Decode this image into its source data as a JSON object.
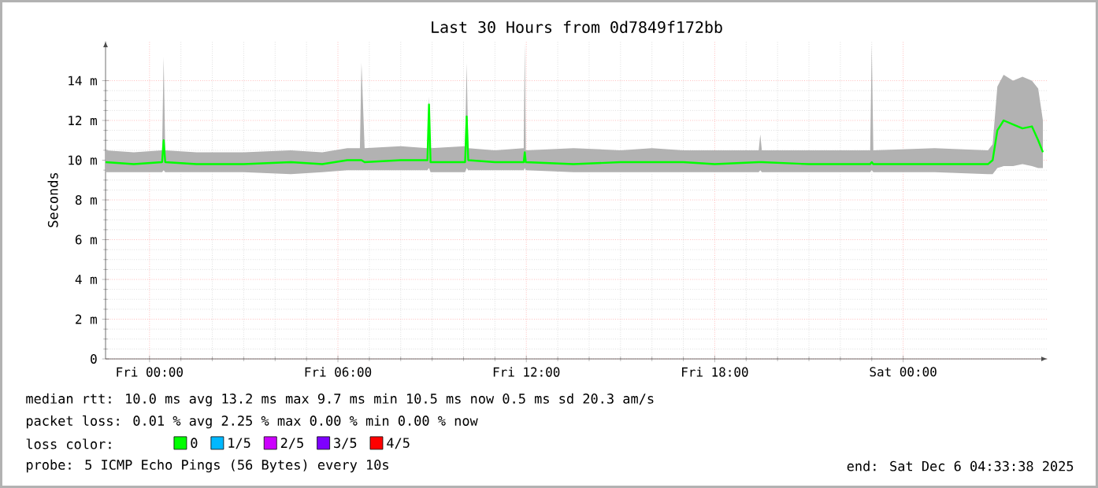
{
  "chart_data": {
    "type": "line",
    "title": "Last 30 Hours from 0d7849f172bb",
    "ylabel": "Seconds",
    "legend_title": "loss color:",
    "xlim": [
      "2025-12-04T22:36",
      "2025-12-06T04:36"
    ],
    "xticks": [
      {
        "value": "2025-12-05T00:00",
        "label": "Fri 00:00"
      },
      {
        "value": "2025-12-05T06:00",
        "label": "Fri 06:00"
      },
      {
        "value": "2025-12-05T12:00",
        "label": "Fri 12:00"
      },
      {
        "value": "2025-12-05T18:00",
        "label": "Fri 18:00"
      },
      {
        "value": "2025-12-06T00:00",
        "label": "Sat 00:00"
      }
    ],
    "ylim": [
      0,
      16
    ],
    "yticks": [
      0,
      {
        "value": 2,
        "label": "2 m"
      },
      {
        "value": 4,
        "label": "4 m"
      },
      {
        "value": 6,
        "label": "6 m"
      },
      {
        "value": 8,
        "label": "8 m"
      },
      {
        "value": 10,
        "label": "10 m"
      },
      {
        "value": 12,
        "label": "12 m"
      },
      {
        "value": 14,
        "label": "14 m"
      }
    ],
    "grid": true,
    "legend": "bottom",
    "marker": "none",
    "line_style": "solid",
    "series": [
      {
        "name": "0",
        "color": "#00ff00",
        "x": [
          "2025-12-04T22:36",
          "2025-12-04T23:30",
          "2025-12-05T00:24",
          "2025-12-05T00:27",
          "2025-12-05T00:30",
          "2025-12-05T01:30",
          "2025-12-05T03:00",
          "2025-12-05T04:30",
          "2025-12-05T05:30",
          "2025-12-05T06:18",
          "2025-12-05T06:42",
          "2025-12-05T06:45",
          "2025-12-05T06:51",
          "2025-12-05T08:00",
          "2025-12-05T08:51",
          "2025-12-05T08:54",
          "2025-12-05T08:57",
          "2025-12-05T10:03",
          "2025-12-05T10:06",
          "2025-12-05T10:09",
          "2025-12-05T11:00",
          "2025-12-05T11:55",
          "2025-12-05T11:57",
          "2025-12-05T11:59",
          "2025-12-05T13:30",
          "2025-12-05T15:00",
          "2025-12-05T16:00",
          "2025-12-05T17:00",
          "2025-12-05T18:00",
          "2025-12-05T19:24",
          "2025-12-05T19:27",
          "2025-12-05T19:30",
          "2025-12-05T21:00",
          "2025-12-05T22:57",
          "2025-12-05T23:00",
          "2025-12-05T23:03",
          "2025-12-06T01:00",
          "2025-12-06T02:42",
          "2025-12-06T02:51",
          "2025-12-06T03:00",
          "2025-12-06T03:12",
          "2025-12-06T03:30",
          "2025-12-06T03:48",
          "2025-12-06T04:06",
          "2025-12-06T04:18",
          "2025-12-06T04:27"
        ],
        "values": [
          9.9,
          9.8,
          9.9,
          11.0,
          9.9,
          9.8,
          9.8,
          9.9,
          9.8,
          10.0,
          10.0,
          10.0,
          9.9,
          10.0,
          10.0,
          12.8,
          9.9,
          9.9,
          12.2,
          10.0,
          9.9,
          9.9,
          10.4,
          9.9,
          9.8,
          9.9,
          9.9,
          9.9,
          9.8,
          9.9,
          9.9,
          9.9,
          9.8,
          9.8,
          9.9,
          9.8,
          9.8,
          9.8,
          10.0,
          11.5,
          12.0,
          11.8,
          11.6,
          11.7,
          11.0,
          10.4
        ],
        "lower": [
          9.4,
          9.4,
          9.4,
          9.5,
          9.4,
          9.4,
          9.4,
          9.3,
          9.4,
          9.5,
          9.5,
          9.5,
          9.5,
          9.5,
          9.5,
          9.6,
          9.4,
          9.4,
          9.6,
          9.5,
          9.5,
          9.5,
          9.6,
          9.5,
          9.4,
          9.4,
          9.4,
          9.4,
          9.4,
          9.4,
          9.5,
          9.4,
          9.4,
          9.4,
          9.5,
          9.4,
          9.4,
          9.3,
          9.3,
          9.6,
          9.7,
          9.7,
          9.8,
          9.7,
          9.6,
          9.6
        ],
        "upper": [
          10.5,
          10.4,
          10.5,
          15.2,
          10.5,
          10.4,
          10.4,
          10.5,
          10.4,
          10.6,
          10.6,
          14.9,
          10.6,
          10.7,
          10.6,
          13.2,
          10.6,
          10.7,
          14.9,
          10.6,
          10.5,
          10.6,
          15.9,
          10.5,
          10.6,
          10.5,
          10.6,
          10.5,
          10.5,
          10.5,
          11.3,
          10.5,
          10.5,
          10.5,
          15.8,
          10.5,
          10.6,
          10.5,
          10.8,
          13.7,
          14.3,
          14.0,
          14.2,
          14.0,
          13.6,
          12.0
        ]
      },
      {
        "name": "1/5",
        "color": "#00b8ff",
        "values": [
          null
        ]
      },
      {
        "name": "2/5",
        "color": "#cc00ff",
        "values": [
          null
        ]
      },
      {
        "name": "3/5",
        "color": "#7e00ff",
        "values": [
          null
        ]
      },
      {
        "name": "4/5",
        "color": "#ff0000",
        "values": [
          null
        ]
      }
    ],
    "annotations": [
      "median rtt:  10.0 ms avg  13.2 ms max  9.7 ms min  10.5 ms now  0.5 ms sd  20.3   am/s",
      "packet loss: 0.01 % avg  2.25 % max  0.00 % min  0.00 % now",
      "probe:       5 ICMP Echo Pings (56 Bytes) every 10s",
      "end: Sat Dec  6 04:33:38 2025"
    ]
  }
}
